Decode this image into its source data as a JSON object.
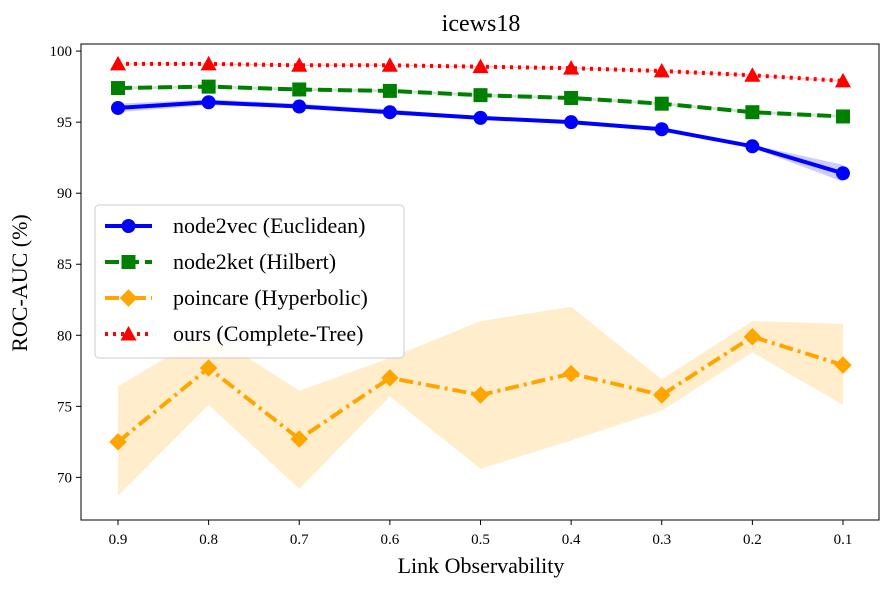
{
  "chart_data": {
    "type": "line",
    "title": "icews18",
    "xlabel": "Link Observability",
    "ylabel": "ROC-AUC (%)",
    "x": [
      "0.9",
      "0.8",
      "0.7",
      "0.6",
      "0.5",
      "0.4",
      "0.3",
      "0.2",
      "0.1"
    ],
    "ylim": [
      67,
      100.5
    ],
    "yticks": [
      70,
      75,
      80,
      85,
      90,
      95,
      100
    ],
    "grid": false,
    "legend_position": "center-left",
    "series": [
      {
        "name": "node2vec (Euclidean)",
        "color": "#0000ff",
        "line_style": "solid",
        "marker": "circle",
        "values": [
          96.0,
          96.4,
          96.1,
          95.7,
          95.3,
          95.0,
          94.5,
          93.3,
          91.4
        ],
        "lower": [
          95.7,
          96.2,
          96.0,
          95.6,
          95.2,
          94.9,
          94.4,
          93.2,
          90.8
        ],
        "upper": [
          96.3,
          96.6,
          96.3,
          95.9,
          95.4,
          95.1,
          94.6,
          93.4,
          92.0
        ]
      },
      {
        "name": "node2ket (Hilbert)",
        "color": "#008000",
        "line_style": "dashed",
        "marker": "square",
        "values": [
          97.4,
          97.5,
          97.3,
          97.2,
          96.9,
          96.7,
          96.3,
          95.7,
          95.4
        ],
        "lower": [
          97.3,
          97.4,
          97.2,
          97.1,
          96.8,
          96.6,
          96.2,
          95.6,
          95.3
        ],
        "upper": [
          97.5,
          97.6,
          97.4,
          97.3,
          97.0,
          96.8,
          96.4,
          95.8,
          95.5
        ]
      },
      {
        "name": "poincare (Hyperbolic)",
        "color": "#ffa500",
        "line_style": "dashdot",
        "marker": "diamond",
        "values": [
          72.5,
          77.7,
          72.7,
          77.0,
          75.8,
          77.3,
          75.8,
          79.9,
          77.9
        ],
        "lower": [
          68.7,
          75.1,
          69.2,
          75.7,
          70.6,
          72.6,
          74.7,
          78.8,
          75.1
        ],
        "upper": [
          76.4,
          80.2,
          76.1,
          78.4,
          81.0,
          82.0,
          76.9,
          81.0,
          80.8
        ]
      },
      {
        "name": "ours (Complete-Tree)",
        "color": "#ff0000",
        "line_style": "dotted",
        "marker": "triangle",
        "values": [
          99.1,
          99.1,
          99.0,
          99.0,
          98.9,
          98.8,
          98.6,
          98.3,
          97.9
        ],
        "lower": [
          99.05,
          99.05,
          98.95,
          98.95,
          98.85,
          98.75,
          98.55,
          98.25,
          97.85
        ],
        "upper": [
          99.15,
          99.15,
          99.05,
          99.05,
          98.95,
          98.85,
          98.65,
          98.35,
          97.95
        ]
      }
    ]
  }
}
